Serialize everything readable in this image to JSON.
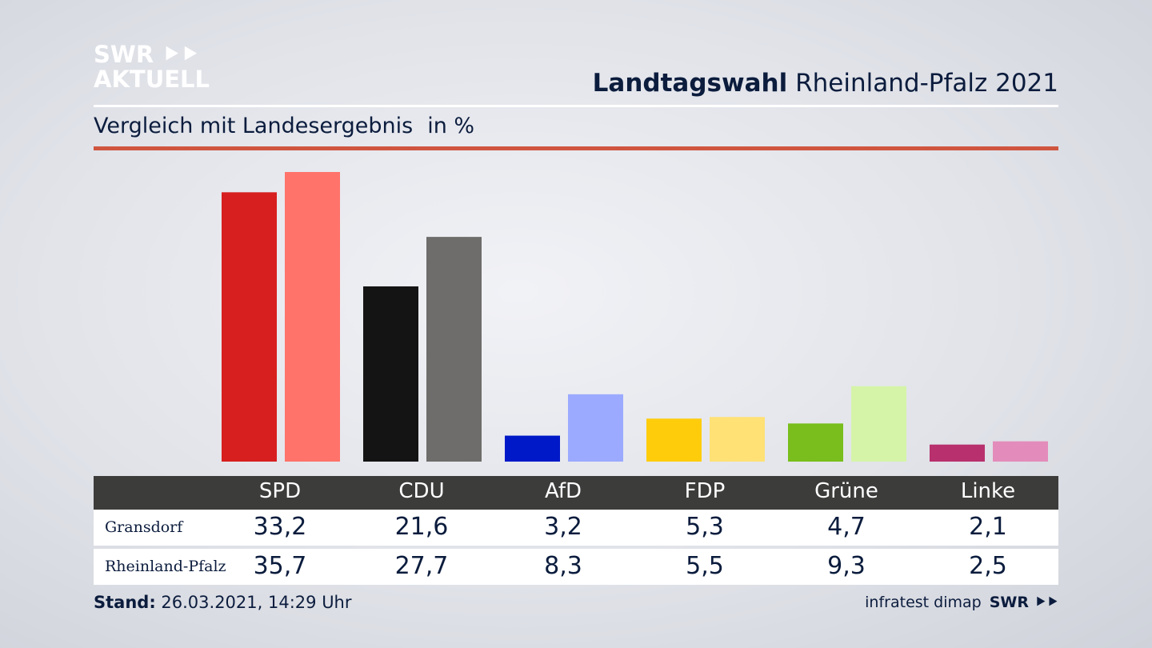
{
  "logo": {
    "line1": "SWR ⯈⯈",
    "line2": "AKTUELL"
  },
  "header": {
    "title_bold": "Landtagswahl",
    "title_rest": "Rheinland-Pfalz 2021"
  },
  "subtitle": {
    "text": "Vergleich mit Landesergebnis",
    "unit": "in %"
  },
  "footer": {
    "stand_label": "Stand:",
    "stand_value": "26.03.2021, 14:29 Uhr",
    "source": "infratest dimap",
    "source_logo": "SWR ⯈⯈"
  },
  "colors": {
    "title_text": "#0b1c3d",
    "accent_rule": "#d0553f",
    "table_header": "#3c3c3b"
  },
  "chart_data": {
    "type": "bar",
    "categories": [
      "SPD",
      "CDU",
      "AfD",
      "FDP",
      "Grüne",
      "Linke"
    ],
    "series": [
      {
        "name": "Gransdorf",
        "values": [
          33.2,
          21.6,
          3.2,
          5.3,
          4.7,
          2.1
        ],
        "labels": [
          "33,2",
          "21,6",
          "3,2",
          "5,3",
          "4,7",
          "2,1"
        ],
        "colors": [
          "#d71f1f",
          "#141414",
          "#0019c8",
          "#ffcc0c",
          "#79be1c",
          "#b8306d"
        ]
      },
      {
        "name": "Rheinland-Pfalz",
        "values": [
          35.7,
          27.7,
          8.3,
          5.5,
          9.3,
          2.5
        ],
        "labels": [
          "35,7",
          "27,7",
          "8,3",
          "5,5",
          "9,3",
          "2,5"
        ],
        "colors": [
          "#ff736a",
          "#6e6d6b",
          "#9baaff",
          "#ffe176",
          "#d5f4a8",
          "#e38cbb"
        ]
      }
    ],
    "ylim": [
      0,
      35.7
    ],
    "grid": false
  }
}
